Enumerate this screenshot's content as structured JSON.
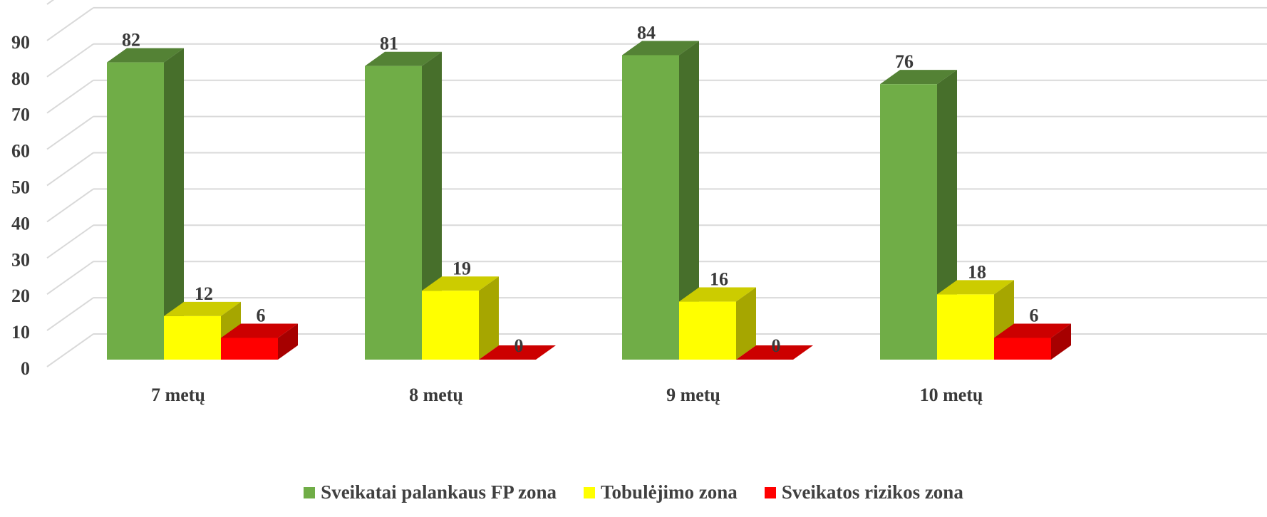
{
  "chart_data": {
    "type": "bar",
    "style": "3d-clustered-column",
    "categories": [
      "7 metų",
      "8 metų",
      "9 metų",
      "10 metų"
    ],
    "series": [
      {
        "name": "Sveikatai palankaus FP zona",
        "values": [
          82,
          81,
          84,
          76
        ],
        "color": "#70ad47",
        "top_color": "#548235",
        "side_color": "#476f2b"
      },
      {
        "name": "Tobulėjimo zona",
        "values": [
          12,
          19,
          16,
          18
        ],
        "color": "#ffff00",
        "top_color": "#cccc00",
        "side_color": "#a6a600"
      },
      {
        "name": "Sveikatos rizikos zona",
        "values": [
          6,
          0,
          0,
          6
        ],
        "color": "#ff0000",
        "top_color": "#cc0000",
        "side_color": "#a60000"
      }
    ],
    "y_ticks": [
      0,
      10,
      20,
      30,
      40,
      50,
      60,
      70,
      80,
      90
    ],
    "ylim": [
      0,
      100
    ],
    "grid": true,
    "legend_position": "bottom",
    "title": "",
    "xlabel": "",
    "ylabel": ""
  }
}
